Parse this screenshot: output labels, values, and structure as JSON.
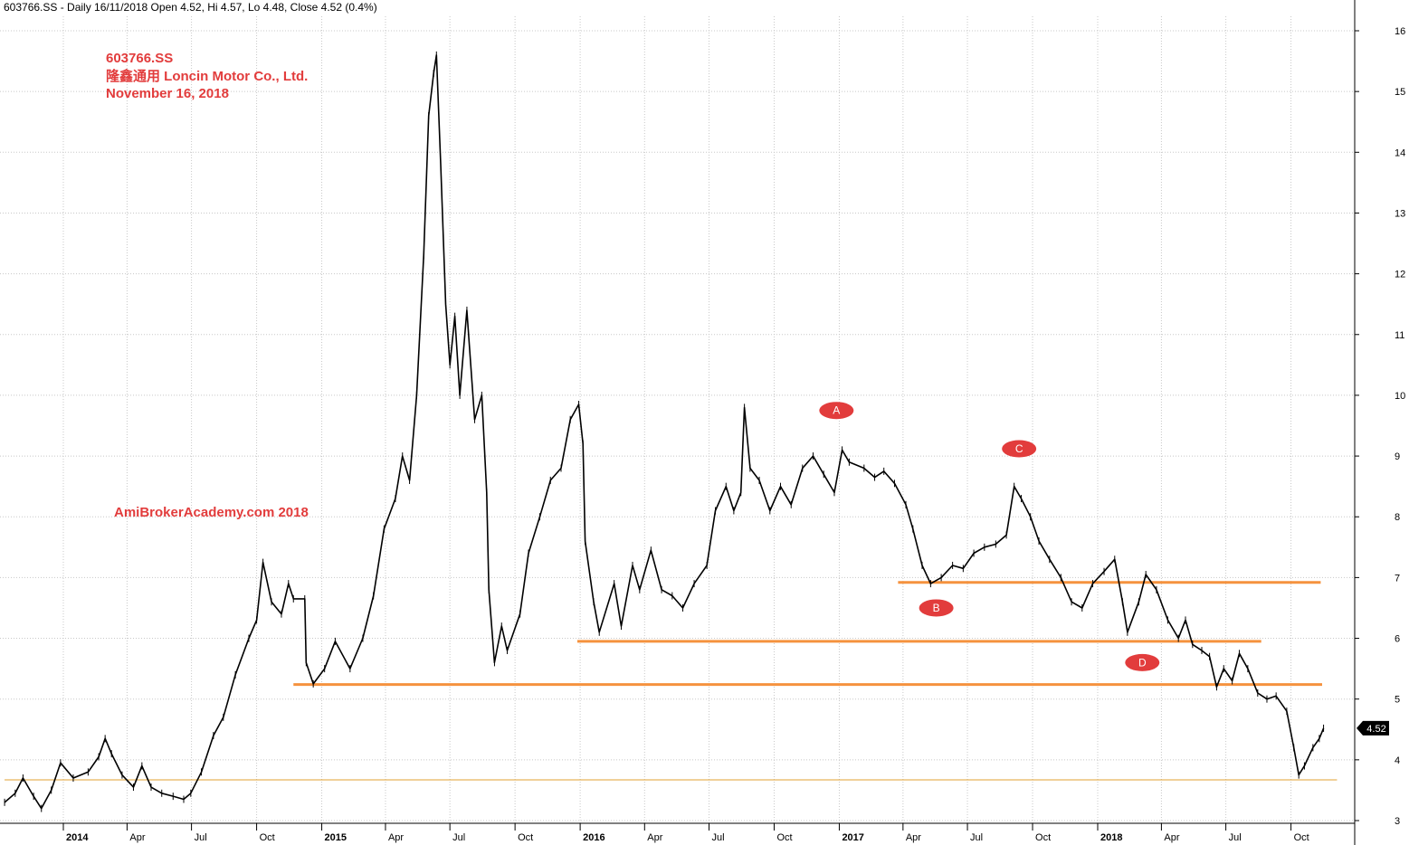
{
  "header": {
    "info": "603766.SS - Daily 16/11/2018 Open 4.52, Hi 4.57, Lo 4.48, Close 4.52 (0.4%)"
  },
  "annotations": {
    "title_lines": [
      "603766.SS",
      "隆鑫通用  Loncin Motor Co., Ltd.",
      "November 16, 2018"
    ],
    "credit": "AmiBrokerAcademy.com  2018",
    "title_color": "#e23c3c"
  },
  "chart_data": {
    "type": "line",
    "title": "603766.SS",
    "xlabel": "",
    "ylabel": "",
    "ylim": [
      3,
      16
    ],
    "grid": true,
    "last_value_label": "4.52",
    "y_ticks": [
      3,
      4,
      5,
      6,
      7,
      8,
      9,
      10,
      11,
      12,
      13,
      14,
      15,
      16
    ],
    "x_ticks": [
      {
        "date": "2014-01-01",
        "label": "2014",
        "bold": true
      },
      {
        "date": "2014-04-01",
        "label": "Apr",
        "bold": false
      },
      {
        "date": "2014-07-01",
        "label": "Jul",
        "bold": false
      },
      {
        "date": "2014-10-01",
        "label": "Oct",
        "bold": false
      },
      {
        "date": "2015-01-01",
        "label": "2015",
        "bold": true
      },
      {
        "date": "2015-04-01",
        "label": "Apr",
        "bold": false
      },
      {
        "date": "2015-07-01",
        "label": "Jul",
        "bold": false
      },
      {
        "date": "2015-10-01",
        "label": "Oct",
        "bold": false
      },
      {
        "date": "2016-01-01",
        "label": "2016",
        "bold": true
      },
      {
        "date": "2016-04-01",
        "label": "Apr",
        "bold": false
      },
      {
        "date": "2016-07-01",
        "label": "Jul",
        "bold": false
      },
      {
        "date": "2016-10-01",
        "label": "Oct",
        "bold": false
      },
      {
        "date": "2017-01-01",
        "label": "2017",
        "bold": true
      },
      {
        "date": "2017-04-01",
        "label": "Apr",
        "bold": false
      },
      {
        "date": "2017-07-01",
        "label": "Jul",
        "bold": false
      },
      {
        "date": "2017-10-01",
        "label": "Oct",
        "bold": false
      },
      {
        "date": "2018-01-01",
        "label": "2018",
        "bold": true
      },
      {
        "date": "2018-04-01",
        "label": "Apr",
        "bold": false
      },
      {
        "date": "2018-07-01",
        "label": "Jul",
        "bold": false
      },
      {
        "date": "2018-10-01",
        "label": "Oct",
        "bold": false
      }
    ],
    "series": [
      {
        "values": [
          [
            "2013-10-10",
            3.3
          ],
          [
            "2013-10-25",
            3.45
          ],
          [
            "2013-11-05",
            3.7
          ],
          [
            "2013-11-20",
            3.4
          ],
          [
            "2013-12-01",
            3.2
          ],
          [
            "2013-12-15",
            3.5
          ],
          [
            "2013-12-28",
            3.95
          ],
          [
            "2014-01-15",
            3.7
          ],
          [
            "2014-02-05",
            3.8
          ],
          [
            "2014-02-20",
            4.05
          ],
          [
            "2014-03-01",
            4.35
          ],
          [
            "2014-03-10",
            4.1
          ],
          [
            "2014-03-25",
            3.75
          ],
          [
            "2014-04-10",
            3.55
          ],
          [
            "2014-04-22",
            3.9
          ],
          [
            "2014-05-05",
            3.55
          ],
          [
            "2014-05-20",
            3.45
          ],
          [
            "2014-06-05",
            3.4
          ],
          [
            "2014-06-20",
            3.35
          ],
          [
            "2014-06-30",
            3.45
          ],
          [
            "2014-07-15",
            3.8
          ],
          [
            "2014-08-01",
            4.4
          ],
          [
            "2014-08-15",
            4.7
          ],
          [
            "2014-09-01",
            5.4
          ],
          [
            "2014-09-20",
            6.0
          ],
          [
            "2014-10-01",
            6.3
          ],
          [
            "2014-10-10",
            7.25
          ],
          [
            "2014-10-22",
            6.6
          ],
          [
            "2014-11-05",
            6.4
          ],
          [
            "2014-11-15",
            6.9
          ],
          [
            "2014-11-22",
            6.65
          ],
          [
            "2014-12-08",
            6.65
          ],
          [
            "2014-12-10",
            5.6
          ],
          [
            "2014-12-20",
            5.25
          ],
          [
            "2015-01-05",
            5.5
          ],
          [
            "2015-01-20",
            5.95
          ],
          [
            "2015-02-10",
            5.5
          ],
          [
            "2015-02-28",
            6.0
          ],
          [
            "2015-03-15",
            6.7
          ],
          [
            "2015-03-30",
            7.8
          ],
          [
            "2015-04-15",
            8.3
          ],
          [
            "2015-04-25",
            9.0
          ],
          [
            "2015-05-05",
            8.6
          ],
          [
            "2015-05-15",
            10.0
          ],
          [
            "2015-05-25",
            12.3
          ],
          [
            "2015-06-01",
            14.6
          ],
          [
            "2015-06-08",
            15.3
          ],
          [
            "2015-06-12",
            15.6
          ],
          [
            "2015-06-18",
            13.8
          ],
          [
            "2015-06-25",
            11.5
          ],
          [
            "2015-07-01",
            10.5
          ],
          [
            "2015-07-08",
            11.3
          ],
          [
            "2015-07-15",
            10.0
          ],
          [
            "2015-07-25",
            11.4
          ],
          [
            "2015-08-05",
            9.6
          ],
          [
            "2015-08-15",
            10.0
          ],
          [
            "2015-08-22",
            8.4
          ],
          [
            "2015-08-25",
            6.8
          ],
          [
            "2015-09-02",
            5.6
          ],
          [
            "2015-09-12",
            6.2
          ],
          [
            "2015-09-20",
            5.8
          ],
          [
            "2015-10-08",
            6.4
          ],
          [
            "2015-10-20",
            7.4
          ],
          [
            "2015-11-05",
            8.0
          ],
          [
            "2015-11-20",
            8.6
          ],
          [
            "2015-12-05",
            8.8
          ],
          [
            "2015-12-18",
            9.6
          ],
          [
            "2015-12-30",
            9.85
          ],
          [
            "2016-01-05",
            9.2
          ],
          [
            "2016-01-08",
            7.6
          ],
          [
            "2016-01-20",
            6.6
          ],
          [
            "2016-01-28",
            6.1
          ],
          [
            "2016-02-18",
            6.9
          ],
          [
            "2016-02-28",
            6.2
          ],
          [
            "2016-03-15",
            7.2
          ],
          [
            "2016-03-25",
            6.8
          ],
          [
            "2016-04-10",
            7.45
          ],
          [
            "2016-04-25",
            6.8
          ],
          [
            "2016-05-10",
            6.7
          ],
          [
            "2016-05-25",
            6.5
          ],
          [
            "2016-06-10",
            6.9
          ],
          [
            "2016-06-28",
            7.2
          ],
          [
            "2016-07-10",
            8.1
          ],
          [
            "2016-07-25",
            8.5
          ],
          [
            "2016-08-05",
            8.1
          ],
          [
            "2016-08-15",
            8.4
          ],
          [
            "2016-08-20",
            9.8
          ],
          [
            "2016-08-28",
            8.8
          ],
          [
            "2016-09-10",
            8.6
          ],
          [
            "2016-09-25",
            8.1
          ],
          [
            "2016-10-10",
            8.5
          ],
          [
            "2016-10-25",
            8.2
          ],
          [
            "2016-11-10",
            8.8
          ],
          [
            "2016-11-25",
            9.0
          ],
          [
            "2016-12-10",
            8.7
          ],
          [
            "2016-12-25",
            8.4
          ],
          [
            "2017-01-05",
            9.1
          ],
          [
            "2017-01-15",
            8.9
          ],
          [
            "2017-02-05",
            8.8
          ],
          [
            "2017-02-20",
            8.65
          ],
          [
            "2017-03-05",
            8.75
          ],
          [
            "2017-03-20",
            8.55
          ],
          [
            "2017-04-05",
            8.2
          ],
          [
            "2017-04-15",
            7.8
          ],
          [
            "2017-04-28",
            7.2
          ],
          [
            "2017-05-10",
            6.9
          ],
          [
            "2017-05-25",
            7.0
          ],
          [
            "2017-06-10",
            7.2
          ],
          [
            "2017-06-25",
            7.15
          ],
          [
            "2017-07-10",
            7.4
          ],
          [
            "2017-07-25",
            7.5
          ],
          [
            "2017-08-10",
            7.55
          ],
          [
            "2017-08-25",
            7.7
          ],
          [
            "2017-09-05",
            8.5
          ],
          [
            "2017-09-15",
            8.3
          ],
          [
            "2017-09-28",
            8.0
          ],
          [
            "2017-10-10",
            7.6
          ],
          [
            "2017-10-25",
            7.3
          ],
          [
            "2017-11-10",
            7.0
          ],
          [
            "2017-11-25",
            6.6
          ],
          [
            "2017-12-10",
            6.5
          ],
          [
            "2017-12-25",
            6.9
          ],
          [
            "2018-01-10",
            7.1
          ],
          [
            "2018-01-25",
            7.3
          ],
          [
            "2018-02-05",
            6.6
          ],
          [
            "2018-02-12",
            6.1
          ],
          [
            "2018-02-28",
            6.6
          ],
          [
            "2018-03-10",
            7.05
          ],
          [
            "2018-03-25",
            6.8
          ],
          [
            "2018-04-10",
            6.3
          ],
          [
            "2018-04-25",
            6.0
          ],
          [
            "2018-05-05",
            6.3
          ],
          [
            "2018-05-15",
            5.9
          ],
          [
            "2018-05-28",
            5.8
          ],
          [
            "2018-06-08",
            5.7
          ],
          [
            "2018-06-18",
            5.2
          ],
          [
            "2018-06-28",
            5.5
          ],
          [
            "2018-07-10",
            5.3
          ],
          [
            "2018-07-20",
            5.75
          ],
          [
            "2018-08-01",
            5.5
          ],
          [
            "2018-08-15",
            5.1
          ],
          [
            "2018-08-28",
            5.0
          ],
          [
            "2018-09-10",
            5.05
          ],
          [
            "2018-09-25",
            4.8
          ],
          [
            "2018-10-05",
            4.2
          ],
          [
            "2018-10-12",
            3.75
          ],
          [
            "2018-10-20",
            3.9
          ],
          [
            "2018-11-01",
            4.2
          ],
          [
            "2018-11-10",
            4.35
          ],
          [
            "2018-11-16",
            4.52
          ]
        ]
      }
    ],
    "support_lines": [
      {
        "start": "2014-11-22",
        "end": "2018-11-14",
        "value": 5.24,
        "color": "#f5923e"
      },
      {
        "start": "2015-12-28",
        "end": "2018-08-20",
        "value": 5.95,
        "color": "#f5923e"
      },
      {
        "start": "2017-03-25",
        "end": "2018-11-12",
        "value": 6.92,
        "color": "#f5923e"
      },
      {
        "start": "2013-10-10",
        "end": "2018-12-05",
        "value": 3.67,
        "color": "#e0a030"
      }
    ],
    "markers": [
      {
        "label": "A",
        "date": "2016-12-28",
        "value": 9.75
      },
      {
        "label": "B",
        "date": "2017-05-18",
        "value": 6.5
      },
      {
        "label": "C",
        "date": "2017-09-12",
        "value": 9.12
      },
      {
        "label": "D",
        "date": "2018-03-05",
        "value": 5.6
      }
    ],
    "marker_color": "#e23c3c",
    "line_color": "#000000"
  }
}
